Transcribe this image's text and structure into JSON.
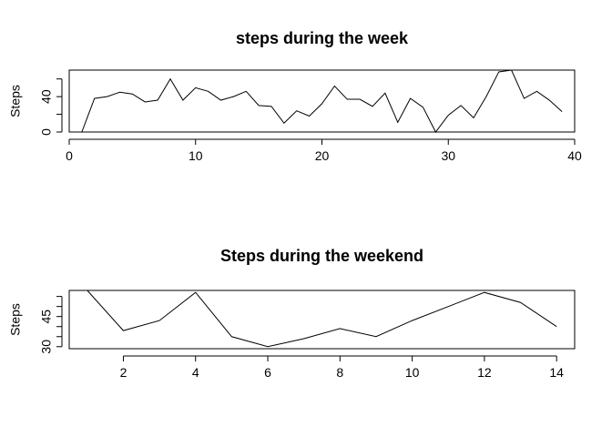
{
  "chart_data": [
    {
      "type": "line",
      "title": "steps during the week",
      "xlabel": "",
      "ylabel": "Steps",
      "xlim": [
        0,
        40
      ],
      "ylim": [
        0,
        70
      ],
      "x_ticks": [
        0,
        10,
        20,
        30,
        40
      ],
      "y_ticks": [
        0,
        20,
        40,
        60
      ],
      "y_tick_labels": [
        "0",
        "",
        "40",
        ""
      ],
      "x": [
        1,
        2,
        3,
        4,
        5,
        6,
        7,
        8,
        9,
        10,
        11,
        12,
        13,
        14,
        15,
        16,
        17,
        18,
        19,
        20,
        21,
        22,
        23,
        24,
        25,
        26,
        27,
        28,
        29,
        30,
        31,
        32,
        33,
        34,
        35,
        36,
        37,
        38,
        39
      ],
      "values": [
        0,
        38,
        40,
        45,
        43,
        34,
        36,
        60,
        36,
        50,
        46,
        36,
        40,
        46,
        30,
        29,
        10,
        24,
        18,
        32,
        52,
        37,
        37,
        29,
        44,
        11,
        38,
        28,
        0,
        19,
        30,
        16,
        40,
        68,
        70,
        38,
        46,
        36,
        23
      ]
    },
    {
      "type": "line",
      "title": "Steps during the weekend",
      "xlabel": "",
      "ylabel": "Steps",
      "xlim": [
        0.5,
        14.5
      ],
      "ylim": [
        29,
        58
      ],
      "x_ticks": [
        2,
        4,
        6,
        8,
        10,
        12,
        14
      ],
      "y_ticks": [
        30,
        35,
        40,
        45,
        50,
        55
      ],
      "y_tick_labels": [
        "30",
        "",
        "",
        "45",
        "",
        ""
      ],
      "x": [
        1,
        2,
        3,
        4,
        5,
        6,
        7,
        8,
        9,
        10,
        11,
        12,
        13,
        14
      ],
      "values": [
        58,
        38,
        43,
        57,
        35,
        30,
        34,
        39,
        35,
        43,
        50,
        57,
        52,
        40
      ]
    }
  ]
}
